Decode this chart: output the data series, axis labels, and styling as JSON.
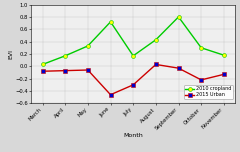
{
  "months": [
    "March",
    "April",
    "May",
    "June",
    "July",
    "August",
    "September",
    "October",
    "November"
  ],
  "cropland_evi": [
    0.03,
    0.17,
    0.33,
    0.72,
    0.17,
    0.43,
    0.8,
    0.3,
    0.18
  ],
  "urban_evi": [
    -0.08,
    -0.07,
    -0.06,
    -0.46,
    -0.3,
    0.03,
    -0.03,
    -0.22,
    -0.13
  ],
  "cropland_color": "#00cc00",
  "urban_color": "#cc0000",
  "marker_cropland": "o",
  "marker_urban": "s",
  "marker_color_cropland": "#ffff00",
  "marker_color_urban": "#0000cc",
  "ylabel": "EVI",
  "xlabel": "Month",
  "ylim": [
    -0.6,
    1.0
  ],
  "yticks": [
    -0.6,
    -0.4,
    -0.2,
    0.0,
    0.2,
    0.4,
    0.6,
    0.8,
    1.0
  ],
  "legend_labels": [
    "2010 cropland",
    "2015 Urban"
  ],
  "bg_color": "#d8d8d8",
  "plot_bg_color": "#efefef"
}
